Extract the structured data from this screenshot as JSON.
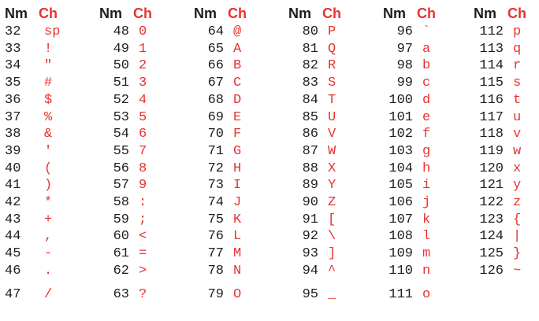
{
  "header": {
    "num_label": "Nm",
    "char_label": "Ch"
  },
  "columns": [
    {
      "rows": [
        {
          "num": "32",
          "char": "sp"
        },
        {
          "num": "33",
          "char": "!"
        },
        {
          "num": "34",
          "char": "\""
        },
        {
          "num": "35",
          "char": "#"
        },
        {
          "num": "36",
          "char": "$"
        },
        {
          "num": "37",
          "char": "%"
        },
        {
          "num": "38",
          "char": "&"
        },
        {
          "num": "39",
          "char": "'"
        },
        {
          "num": "40",
          "char": "("
        },
        {
          "num": "41",
          "char": ")"
        },
        {
          "num": "42",
          "char": "*"
        },
        {
          "num": "43",
          "char": "+"
        },
        {
          "num": "44",
          "char": ","
        },
        {
          "num": "45",
          "char": "-"
        },
        {
          "num": "46",
          "char": "."
        },
        {
          "num": "47",
          "char": "/"
        }
      ]
    },
    {
      "rows": [
        {
          "num": "48",
          "char": "0"
        },
        {
          "num": "49",
          "char": "1"
        },
        {
          "num": "50",
          "char": "2"
        },
        {
          "num": "51",
          "char": "3"
        },
        {
          "num": "52",
          "char": "4"
        },
        {
          "num": "53",
          "char": "5"
        },
        {
          "num": "54",
          "char": "6"
        },
        {
          "num": "55",
          "char": "7"
        },
        {
          "num": "56",
          "char": "8"
        },
        {
          "num": "57",
          "char": "9"
        },
        {
          "num": "58",
          "char": ":"
        },
        {
          "num": "59",
          "char": ";"
        },
        {
          "num": "60",
          "char": "<"
        },
        {
          "num": "61",
          "char": "="
        },
        {
          "num": "62",
          "char": ">"
        },
        {
          "num": "63",
          "char": "?"
        }
      ]
    },
    {
      "rows": [
        {
          "num": "64",
          "char": "@"
        },
        {
          "num": "65",
          "char": "A"
        },
        {
          "num": "66",
          "char": "B"
        },
        {
          "num": "67",
          "char": "C"
        },
        {
          "num": "68",
          "char": "D"
        },
        {
          "num": "69",
          "char": "E"
        },
        {
          "num": "70",
          "char": "F"
        },
        {
          "num": "71",
          "char": "G"
        },
        {
          "num": "72",
          "char": "H"
        },
        {
          "num": "73",
          "char": "I"
        },
        {
          "num": "74",
          "char": "J"
        },
        {
          "num": "75",
          "char": "K"
        },
        {
          "num": "76",
          "char": "L"
        },
        {
          "num": "77",
          "char": "M"
        },
        {
          "num": "78",
          "char": "N"
        },
        {
          "num": "79",
          "char": "O"
        }
      ]
    },
    {
      "rows": [
        {
          "num": "80",
          "char": "P"
        },
        {
          "num": "81",
          "char": "Q"
        },
        {
          "num": "82",
          "char": "R"
        },
        {
          "num": "83",
          "char": "S"
        },
        {
          "num": "84",
          "char": "T"
        },
        {
          "num": "85",
          "char": "U"
        },
        {
          "num": "86",
          "char": "V"
        },
        {
          "num": "87",
          "char": "W"
        },
        {
          "num": "88",
          "char": "X"
        },
        {
          "num": "89",
          "char": "Y"
        },
        {
          "num": "90",
          "char": "Z"
        },
        {
          "num": "91",
          "char": "["
        },
        {
          "num": "92",
          "char": "\\"
        },
        {
          "num": "93",
          "char": "]"
        },
        {
          "num": "94",
          "char": "^"
        },
        {
          "num": "95",
          "char": "_"
        }
      ]
    },
    {
      "rows": [
        {
          "num": "96",
          "char": "`"
        },
        {
          "num": "97",
          "char": "a"
        },
        {
          "num": "98",
          "char": "b"
        },
        {
          "num": "99",
          "char": "c"
        },
        {
          "num": "100",
          "char": "d"
        },
        {
          "num": "101",
          "char": "e"
        },
        {
          "num": "102",
          "char": "f"
        },
        {
          "num": "103",
          "char": "g"
        },
        {
          "num": "104",
          "char": "h"
        },
        {
          "num": "105",
          "char": "i"
        },
        {
          "num": "106",
          "char": "j"
        },
        {
          "num": "107",
          "char": "k"
        },
        {
          "num": "108",
          "char": "l"
        },
        {
          "num": "109",
          "char": "m"
        },
        {
          "num": "110",
          "char": "n"
        },
        {
          "num": "111",
          "char": "o"
        }
      ]
    },
    {
      "rows": [
        {
          "num": "112",
          "char": "p"
        },
        {
          "num": "113",
          "char": "q"
        },
        {
          "num": "114",
          "char": "r"
        },
        {
          "num": "115",
          "char": "s"
        },
        {
          "num": "116",
          "char": "t"
        },
        {
          "num": "117",
          "char": "u"
        },
        {
          "num": "118",
          "char": "v"
        },
        {
          "num": "119",
          "char": "w"
        },
        {
          "num": "120",
          "char": "x"
        },
        {
          "num": "121",
          "char": "y"
        },
        {
          "num": "122",
          "char": "z"
        },
        {
          "num": "123",
          "char": "{"
        },
        {
          "num": "124",
          "char": "|"
        },
        {
          "num": "125",
          "char": "}"
        },
        {
          "num": "126",
          "char": "~"
        }
      ]
    }
  ]
}
